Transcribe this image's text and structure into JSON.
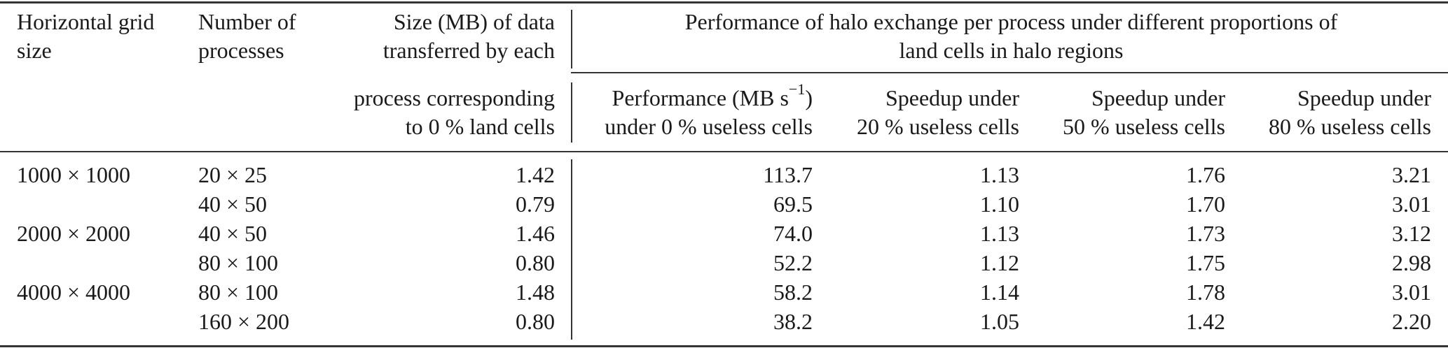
{
  "header": {
    "col1_line1": "Horizontal grid",
    "col1_line2": "size",
    "col2_line1": "Number of",
    "col2_line2": "processes",
    "col3_line1": "Size (MB) of data",
    "col3_line2": "transferred by each",
    "col3_line3": "process corresponding",
    "col3_line4": "to 0 % land cells",
    "group_line1": "Performance of halo exchange per process under different proportions of",
    "group_line2": "land cells in halo regions",
    "perf_line1_a": "Performance (MB s",
    "perf_line1_sup": "−1",
    "perf_line1_b": ")",
    "perf_line2": "under 0 % useless cells",
    "sp20_line1": "Speedup under",
    "sp20_line2": "20 % useless cells",
    "sp50_line1": "Speedup under",
    "sp50_line2": "50 % useless cells",
    "sp80_line1": "Speedup under",
    "sp80_line2": "80 % useless cells"
  },
  "rows": [
    {
      "grid": "1000 × 1000",
      "procs": "20 × 25",
      "size": "1.42",
      "perf": "113.7",
      "s20": "1.13",
      "s50": "1.76",
      "s80": "3.21"
    },
    {
      "grid": "",
      "procs": "40 × 50",
      "size": "0.79",
      "perf": "69.5",
      "s20": "1.10",
      "s50": "1.70",
      "s80": "3.01"
    },
    {
      "grid": "2000 × 2000",
      "procs": "40 × 50",
      "size": "1.46",
      "perf": "74.0",
      "s20": "1.13",
      "s50": "1.73",
      "s80": "3.12"
    },
    {
      "grid": "",
      "procs": "80 × 100",
      "size": "0.80",
      "perf": "52.2",
      "s20": "1.12",
      "s50": "1.75",
      "s80": "2.98"
    },
    {
      "grid": "4000 × 4000",
      "procs": "80 × 100",
      "size": "1.48",
      "perf": "58.2",
      "s20": "1.14",
      "s50": "1.78",
      "s80": "3.01"
    },
    {
      "grid": "",
      "procs": "160 × 200",
      "size": "0.80",
      "perf": "38.2",
      "s20": "1.05",
      "s50": "1.42",
      "s80": "2.20"
    }
  ]
}
